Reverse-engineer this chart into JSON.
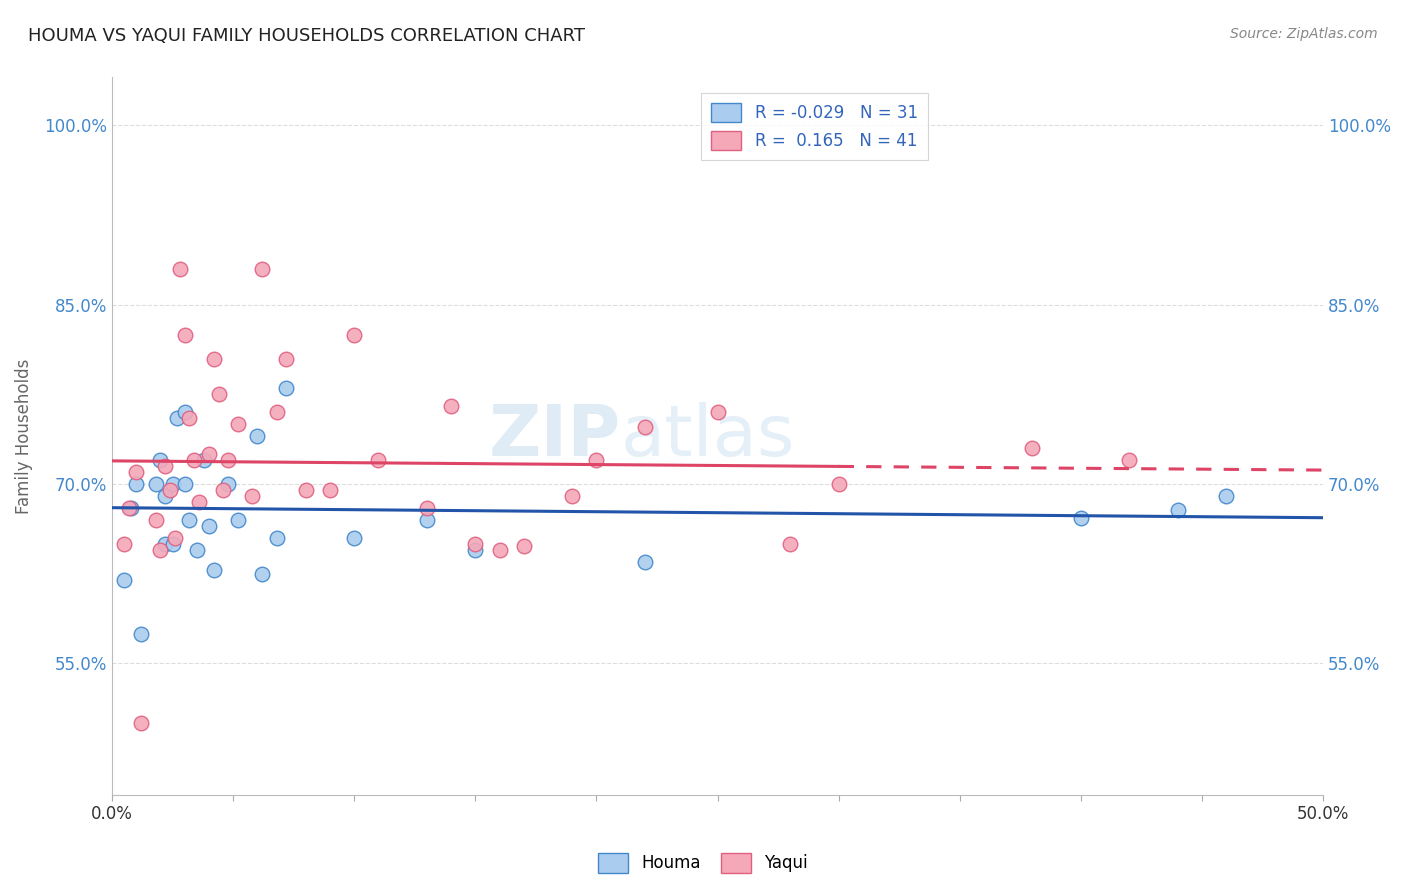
{
  "title": "HOUMA VS YAQUI FAMILY HOUSEHOLDS CORRELATION CHART",
  "source": "Source: ZipAtlas.com",
  "xlabel": "",
  "ylabel": "Family Households",
  "xlim": [
    0.0,
    0.5
  ],
  "ylim": [
    0.44,
    1.04
  ],
  "yticks": [
    0.55,
    0.7,
    0.85,
    1.0
  ],
  "ytick_labels": [
    "55.0%",
    "70.0%",
    "85.0%",
    "100.0%"
  ],
  "xticks": [
    0.0,
    0.05,
    0.1,
    0.15,
    0.2,
    0.25,
    0.3,
    0.35,
    0.4,
    0.45,
    0.5
  ],
  "xtick_labels": [
    "0.0%",
    "",
    "",
    "",
    "",
    "",
    "",
    "",
    "",
    "",
    "50.0%"
  ],
  "houma_color": "#aaccee",
  "yaqui_color": "#f4a8b8",
  "houma_edge_color": "#4488cc",
  "yaqui_edge_color": "#e06080",
  "houma_line_color": "#2255aa",
  "yaqui_line_color": "#dd4466",
  "houma_R": -0.029,
  "houma_N": 31,
  "yaqui_R": 0.165,
  "yaqui_N": 41,
  "watermark_text": "ZIP",
  "watermark_text2": "atlas",
  "houma_x": [
    0.005,
    0.008,
    0.01,
    0.012,
    0.018,
    0.02,
    0.022,
    0.022,
    0.025,
    0.025,
    0.027,
    0.03,
    0.03,
    0.032,
    0.035,
    0.038,
    0.04,
    0.042,
    0.048,
    0.052,
    0.06,
    0.062,
    0.068,
    0.072,
    0.1,
    0.13,
    0.15,
    0.22,
    0.4,
    0.44,
    0.46
  ],
  "houma_y": [
    0.62,
    0.68,
    0.7,
    0.575,
    0.7,
    0.72,
    0.69,
    0.65,
    0.7,
    0.65,
    0.755,
    0.7,
    0.76,
    0.67,
    0.645,
    0.72,
    0.665,
    0.628,
    0.7,
    0.67,
    0.74,
    0.625,
    0.655,
    0.78,
    0.655,
    0.67,
    0.645,
    0.635,
    0.672,
    0.678,
    0.69
  ],
  "yaqui_x": [
    0.005,
    0.007,
    0.01,
    0.012,
    0.018,
    0.02,
    0.022,
    0.024,
    0.026,
    0.028,
    0.03,
    0.032,
    0.034,
    0.036,
    0.04,
    0.042,
    0.044,
    0.046,
    0.048,
    0.052,
    0.058,
    0.062,
    0.068,
    0.072,
    0.08,
    0.09,
    0.1,
    0.11,
    0.13,
    0.14,
    0.15,
    0.16,
    0.17,
    0.19,
    0.2,
    0.22,
    0.25,
    0.28,
    0.3,
    0.38,
    0.42
  ],
  "yaqui_y": [
    0.65,
    0.68,
    0.71,
    0.5,
    0.67,
    0.645,
    0.715,
    0.695,
    0.655,
    0.88,
    0.825,
    0.755,
    0.72,
    0.685,
    0.725,
    0.805,
    0.775,
    0.695,
    0.72,
    0.75,
    0.69,
    0.88,
    0.76,
    0.805,
    0.695,
    0.695,
    0.825,
    0.72,
    0.68,
    0.765,
    0.65,
    0.645,
    0.648,
    0.69,
    0.72,
    0.748,
    0.76,
    0.65,
    0.7,
    0.73,
    0.72
  ]
}
